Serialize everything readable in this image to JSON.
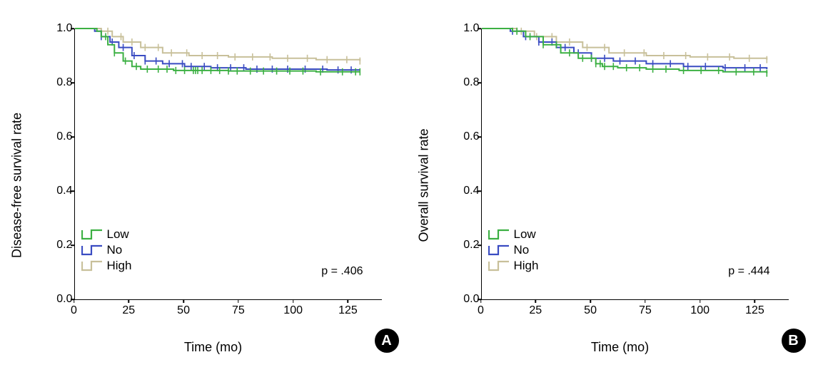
{
  "figure": {
    "background_color": "#ffffff",
    "panel_badge_bg": "#000000",
    "panel_badge_fg": "#ffffff",
    "xaxis": {
      "label": "Time (mo)",
      "min": 0,
      "max": 140,
      "ticks": [
        0,
        25,
        50,
        75,
        100,
        125
      ],
      "label_fontsize": 18,
      "tick_fontsize": 16
    },
    "yaxis": {
      "min": 0.0,
      "max": 1.0,
      "ticks": [
        0.0,
        0.2,
        0.4,
        0.6,
        0.8,
        1.0
      ],
      "tick_labels": [
        "0.0",
        "0.2",
        "0.4",
        "0.6",
        "0.8",
        "1.0"
      ],
      "label_fontsize": 18,
      "tick_fontsize": 16
    },
    "legend": {
      "items": [
        {
          "key": "low",
          "label": "Low",
          "color": "#3cb043"
        },
        {
          "key": "no",
          "label": "No",
          "color": "#3a4cc2"
        },
        {
          "key": "high",
          "label": "High",
          "color": "#c8c09a"
        }
      ],
      "fontsize": 17
    },
    "line_width": 2.0,
    "censor_tick_height": 5
  },
  "panels": [
    {
      "id": "A",
      "ylabel": "Disease-free survival rate",
      "pvalue": "p = .406",
      "series": {
        "low": {
          "color": "#3cb043",
          "points": [
            [
              0,
              1.0
            ],
            [
              7,
              1.0
            ],
            [
              10,
              0.99
            ],
            [
              12,
              0.97
            ],
            [
              15,
              0.94
            ],
            [
              18,
              0.91
            ],
            [
              22,
              0.88
            ],
            [
              26,
              0.86
            ],
            [
              30,
              0.85
            ],
            [
              38,
              0.85
            ],
            [
              45,
              0.845
            ],
            [
              55,
              0.845
            ],
            [
              70,
              0.843
            ],
            [
              90,
              0.843
            ],
            [
              110,
              0.84
            ],
            [
              130,
              0.84
            ]
          ],
          "censors": [
            14,
            18,
            23,
            28,
            33,
            38,
            42,
            46,
            50,
            54,
            55,
            56,
            58,
            62,
            66,
            70,
            74,
            80,
            86,
            92,
            98,
            104,
            112,
            122,
            128,
            130
          ]
        },
        "no": {
          "color": "#3a4cc2",
          "points": [
            [
              0,
              1.0
            ],
            [
              6,
              1.0
            ],
            [
              9,
              0.99
            ],
            [
              12,
              0.97
            ],
            [
              16,
              0.95
            ],
            [
              20,
              0.93
            ],
            [
              26,
              0.9
            ],
            [
              32,
              0.88
            ],
            [
              40,
              0.87
            ],
            [
              50,
              0.86
            ],
            [
              62,
              0.855
            ],
            [
              78,
              0.85
            ],
            [
              95,
              0.85
            ],
            [
              115,
              0.847
            ],
            [
              130,
              0.847
            ]
          ],
          "censors": [
            12,
            17,
            22,
            27,
            32,
            37,
            43,
            49,
            53,
            59,
            65,
            71,
            77,
            83,
            90,
            97,
            105,
            113,
            120,
            126
          ]
        },
        "high": {
          "color": "#c8c09a",
          "points": [
            [
              0,
              1.0
            ],
            [
              8,
              1.0
            ],
            [
              12,
              0.99
            ],
            [
              17,
              0.97
            ],
            [
              22,
              0.95
            ],
            [
              30,
              0.93
            ],
            [
              40,
              0.91
            ],
            [
              52,
              0.9
            ],
            [
              70,
              0.895
            ],
            [
              90,
              0.89
            ],
            [
              110,
              0.885
            ],
            [
              130,
              0.88
            ]
          ],
          "censors": [
            15,
            21,
            26,
            32,
            38,
            44,
            51,
            58,
            65,
            73,
            81,
            89,
            97,
            106,
            115,
            124,
            130
          ]
        }
      }
    },
    {
      "id": "B",
      "ylabel": "Overall survival rate",
      "pvalue": "p = .444",
      "series": {
        "low": {
          "color": "#3cb043",
          "points": [
            [
              0,
              1.0
            ],
            [
              10,
              1.0
            ],
            [
              14,
              0.99
            ],
            [
              20,
              0.97
            ],
            [
              28,
              0.94
            ],
            [
              36,
              0.91
            ],
            [
              44,
              0.89
            ],
            [
              52,
              0.87
            ],
            [
              55,
              0.86
            ],
            [
              62,
              0.855
            ],
            [
              75,
              0.85
            ],
            [
              90,
              0.845
            ],
            [
              110,
              0.84
            ],
            [
              130,
              0.835
            ]
          ],
          "censors": [
            16,
            22,
            28,
            34,
            40,
            46,
            50,
            52,
            54,
            56,
            60,
            66,
            72,
            78,
            84,
            92,
            100,
            108,
            116,
            124,
            130
          ]
        },
        "no": {
          "color": "#3a4cc2",
          "points": [
            [
              0,
              1.0
            ],
            [
              9,
              1.0
            ],
            [
              13,
              0.99
            ],
            [
              19,
              0.97
            ],
            [
              26,
              0.95
            ],
            [
              34,
              0.93
            ],
            [
              42,
              0.91
            ],
            [
              50,
              0.89
            ],
            [
              60,
              0.88
            ],
            [
              75,
              0.87
            ],
            [
              92,
              0.86
            ],
            [
              110,
              0.855
            ],
            [
              130,
              0.85
            ]
          ],
          "censors": [
            14,
            20,
            26,
            32,
            38,
            44,
            50,
            56,
            63,
            70,
            78,
            86,
            94,
            102,
            111,
            120,
            127
          ]
        },
        "high": {
          "color": "#c8c09a",
          "points": [
            [
              0,
              1.0
            ],
            [
              11,
              1.0
            ],
            [
              16,
              0.99
            ],
            [
              24,
              0.97
            ],
            [
              34,
              0.95
            ],
            [
              46,
              0.93
            ],
            [
              58,
              0.91
            ],
            [
              75,
              0.9
            ],
            [
              95,
              0.895
            ],
            [
              115,
              0.89
            ],
            [
              130,
              0.885
            ]
          ],
          "censors": [
            18,
            25,
            32,
            40,
            48,
            56,
            65,
            74,
            83,
            93,
            103,
            113,
            122,
            130
          ]
        }
      }
    }
  ]
}
